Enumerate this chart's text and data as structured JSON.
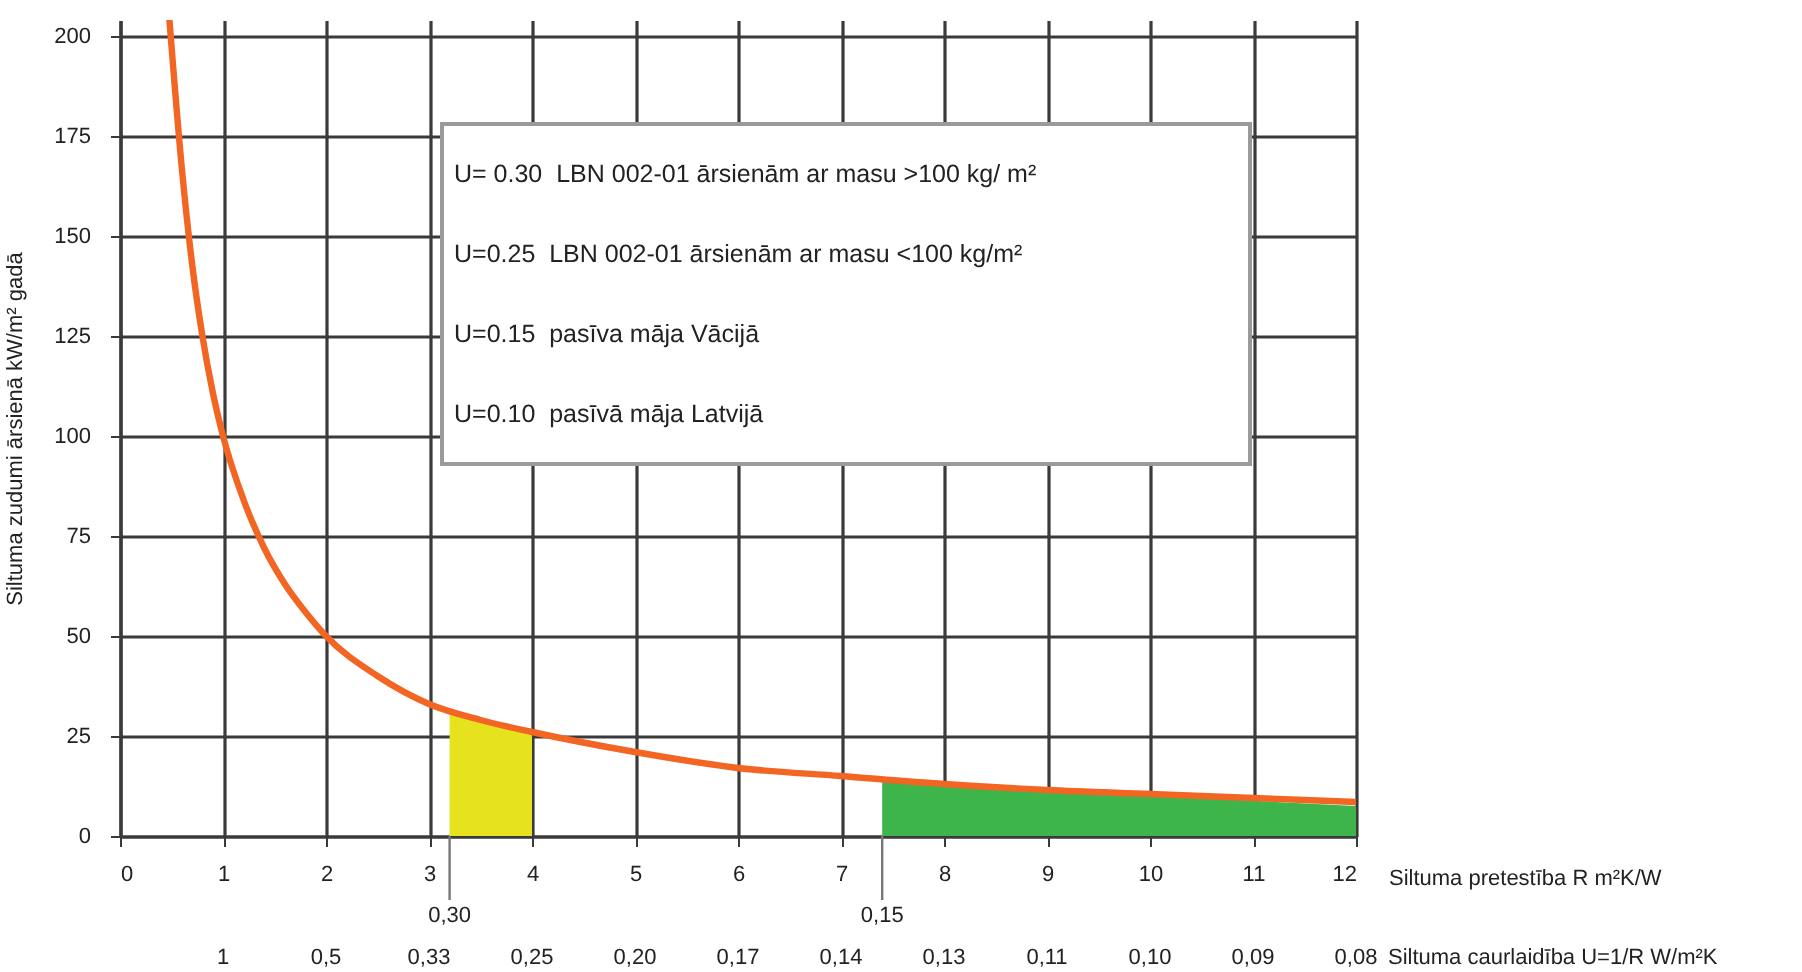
{
  "chart_data": {
    "type": "line",
    "ylabel": "Siltuma zudumi ārsienā kW/m² gadā",
    "xlabel": "Siltuma pretestība R m²K/W",
    "x2label": "Siltuma caurlaidība U=1/R W/m²K",
    "xlim": [
      0,
      12
    ],
    "xticks": [
      0,
      1,
      2,
      3,
      4,
      5,
      6,
      7,
      8,
      9,
      10,
      11,
      12
    ],
    "ylim": [
      0,
      204
    ],
    "yticks": [
      0,
      25,
      50,
      75,
      100,
      125,
      150,
      175,
      200
    ],
    "grid": true,
    "series": [
      {
        "type": "area",
        "color": "#e6e21e",
        "x": [
          3.2,
          4
        ],
        "values": [
          31,
          25.5
        ]
      },
      {
        "type": "area",
        "color": "#3db54a",
        "x": [
          7.4,
          12
        ],
        "values": [
          13.5,
          7.5
        ]
      },
      {
        "color": "#f26522",
        "x": [
          0.48,
          0.6,
          0.7,
          0.8,
          0.9,
          1,
          1.2,
          1.4,
          1.6,
          1.8,
          2,
          2.5,
          3,
          3.5,
          4,
          5,
          6,
          7,
          8,
          9,
          10,
          11,
          12
        ],
        "values": [
          204,
          167,
          143,
          125,
          111,
          100,
          84,
          72,
          63,
          56,
          50,
          40,
          33,
          29,
          26,
          21,
          17,
          15,
          13,
          11.5,
          10.5,
          9.5,
          8.5
        ]
      }
    ],
    "annotations": [
      "U= 0.30  LBN 002-01 ārsienām ar masu >100 kg/ m²",
      "U=0.25  LBN 002-01 ārsienām ar masu <100 kg/m²",
      "U=0.15  pasīva māja Vācijā",
      "U=0.10  pasīvā māja Latvijā",
      "1",
      "0,5",
      "0,33",
      "0,25",
      "0,20",
      "0,17",
      "0,14",
      "0,13",
      "0,11",
      "0,10",
      "0,09",
      "0,08",
      {
        "text": "0,30",
        "x": 3.2
      },
      {
        "text": "0,15",
        "x": 7.4
      }
    ]
  }
}
